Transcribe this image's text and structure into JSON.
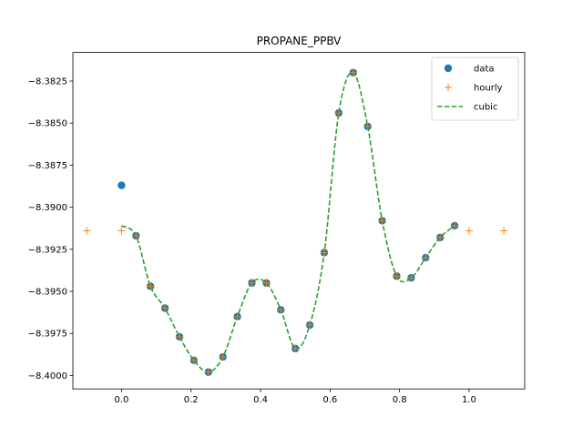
{
  "chart_data": {
    "type": "line",
    "title": "PROPANE_PPBV",
    "xlabel": "",
    "ylabel": "",
    "xlim": [
      -0.14,
      1.16
    ],
    "ylim": [
      -8.4008,
      -8.3808
    ],
    "x_ticks": [
      {
        "value": 0.0,
        "label": "0.0"
      },
      {
        "value": 0.2,
        "label": "0.2"
      },
      {
        "value": 0.4,
        "label": "0.4"
      },
      {
        "value": 0.6,
        "label": "0.6"
      },
      {
        "value": 0.8,
        "label": "0.8"
      },
      {
        "value": 1.0,
        "label": "1.0"
      }
    ],
    "y_ticks": [
      {
        "value": -8.3825,
        "label": "−8.3825"
      },
      {
        "value": -8.385,
        "label": "−8.3850"
      },
      {
        "value": -8.3875,
        "label": "−8.3875"
      },
      {
        "value": -8.39,
        "label": "−8.3900"
      },
      {
        "value": -8.3925,
        "label": "−8.3925"
      },
      {
        "value": -8.395,
        "label": "−8.3950"
      },
      {
        "value": -8.3975,
        "label": "−8.3975"
      },
      {
        "value": -8.4,
        "label": "−8.4000"
      }
    ],
    "grid": false,
    "legend_position": "top-right",
    "series": [
      {
        "name": "data",
        "style": "marker-circle",
        "color": "#1f77b4",
        "x": [
          0.0,
          0.0417,
          0.0833,
          0.125,
          0.1667,
          0.2083,
          0.25,
          0.2917,
          0.3333,
          0.375,
          0.4167,
          0.4583,
          0.5,
          0.5417,
          0.5833,
          0.625,
          0.6667,
          0.7083,
          0.75,
          0.7917,
          0.8333,
          0.875,
          0.9167,
          0.9583
        ],
        "y": [
          -8.3887,
          -8.3917,
          -8.3947,
          -8.396,
          -8.3977,
          -8.3991,
          -8.3998,
          -8.3989,
          -8.3965,
          -8.3945,
          -8.3945,
          -8.3961,
          -8.3984,
          -8.397,
          -8.3927,
          -8.3844,
          -8.382,
          -8.3852,
          -8.3908,
          -8.3941,
          -8.3942,
          -8.393,
          -8.3918,
          -8.3911
        ]
      },
      {
        "name": "hourly",
        "style": "marker-plus",
        "color": "#ff7f0e",
        "x": [
          -0.1,
          0.0,
          0.0417,
          0.0833,
          0.125,
          0.1667,
          0.2083,
          0.25,
          0.2917,
          0.3333,
          0.375,
          0.4167,
          0.4583,
          0.5,
          0.5417,
          0.5833,
          0.625,
          0.6667,
          0.7083,
          0.75,
          0.7917,
          0.8333,
          0.875,
          0.9167,
          0.9583,
          1.0,
          1.1
        ],
        "y": [
          -8.3914,
          -8.3914,
          -8.3917,
          -8.3947,
          -8.396,
          -8.3977,
          -8.3991,
          -8.3998,
          -8.3989,
          -8.3965,
          -8.3945,
          -8.3945,
          -8.3961,
          -8.3984,
          -8.397,
          -8.3927,
          -8.3844,
          -8.382,
          -8.3852,
          -8.3908,
          -8.3941,
          -8.3942,
          -8.393,
          -8.3918,
          -8.3911,
          -8.3914,
          -8.3914
        ]
      },
      {
        "name": "cubic",
        "style": "dashed-line",
        "color": "#2ca02c",
        "x": [
          0.0,
          0.0417,
          0.0833,
          0.125,
          0.1667,
          0.2083,
          0.25,
          0.2917,
          0.3333,
          0.375,
          0.4167,
          0.4583,
          0.5,
          0.5417,
          0.5833,
          0.625,
          0.6667,
          0.7083,
          0.75,
          0.7917,
          0.8333,
          0.875,
          0.9167,
          0.9583
        ],
        "y": [
          -8.3911,
          -8.3917,
          -8.3947,
          -8.396,
          -8.3977,
          -8.3991,
          -8.3998,
          -8.3989,
          -8.3965,
          -8.3945,
          -8.3945,
          -8.3961,
          -8.3984,
          -8.397,
          -8.3927,
          -8.3844,
          -8.382,
          -8.3852,
          -8.3908,
          -8.3941,
          -8.3942,
          -8.393,
          -8.3918,
          -8.3911
        ]
      }
    ]
  }
}
